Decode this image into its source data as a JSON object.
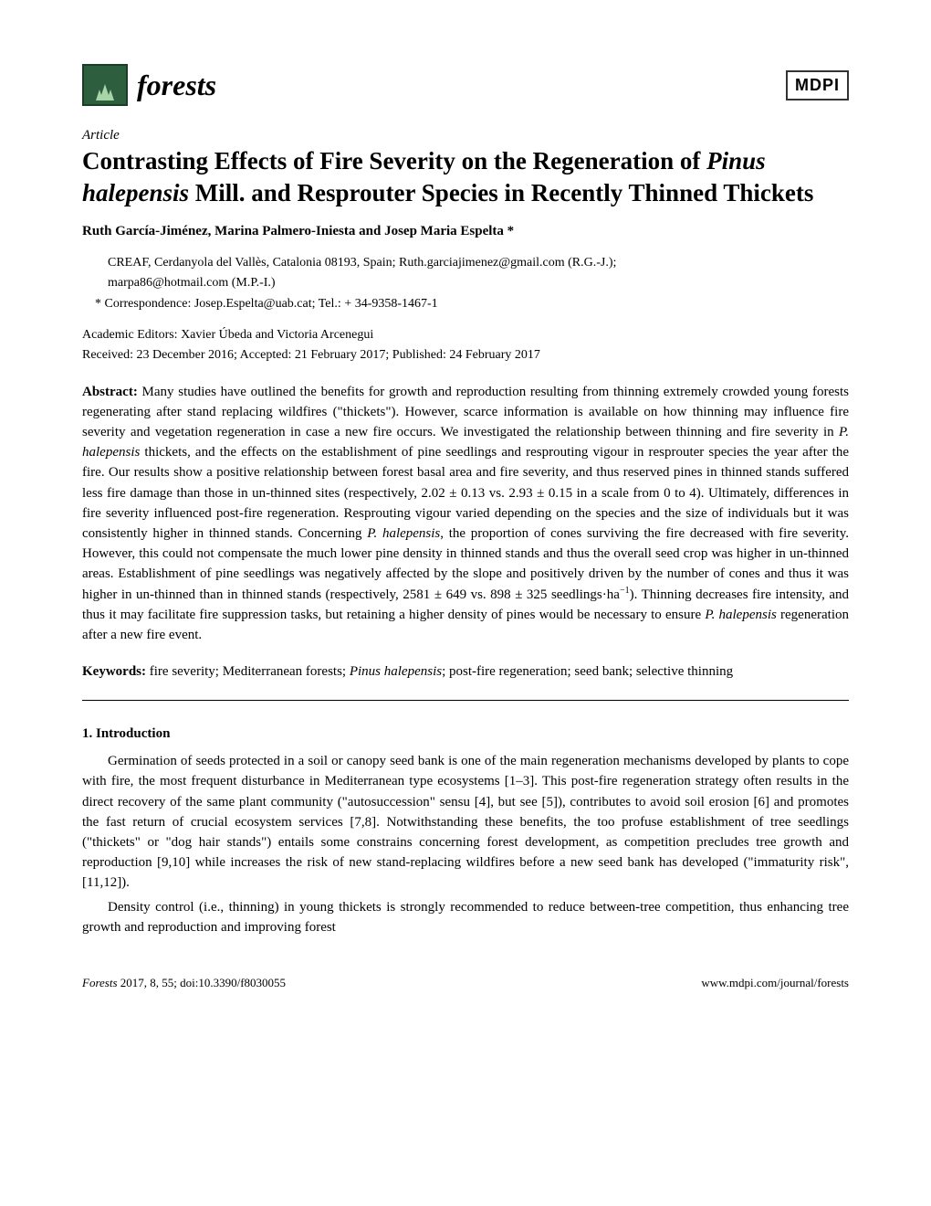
{
  "journal": {
    "name": "forests",
    "publisher": "MDPI"
  },
  "article": {
    "type": "Article",
    "title_pre": "Contrasting Effects of Fire Severity on the Regeneration of ",
    "title_species": "Pinus halepensis",
    "title_post": " Mill. and Resprouter Species in Recently Thinned Thickets",
    "authors": "Ruth García-Jiménez, Marina Palmero-Iniesta and Josep Maria Espelta *",
    "affiliation_line1": "CREAF, Cerdanyola del Vallès, Catalonia 08193, Spain; Ruth.garciajimenez@gmail.com (R.G.-J.);",
    "affiliation_line2": "marpa86@hotmail.com (M.P.-I.)",
    "correspondence": "*  Correspondence: Josep.Espelta@uab.cat; Tel.: + 34-9358-1467-1",
    "editors": "Academic Editors: Xavier Úbeda and Victoria Arcenegui",
    "dates": "Received: 23 December 2016; Accepted: 21 February 2017; Published: 24 February 2017",
    "abstract_label": "Abstract:",
    "abstract_p1a": " Many studies have outlined the benefits for growth and reproduction resulting from thinning extremely crowded young forests regenerating after stand replacing wildfires (\"thickets\"). However, scarce information is available on how thinning may influence fire severity and vegetation regeneration in case a new fire occurs. We investigated the relationship between thinning and fire severity in ",
    "abstract_sp1": "P. halepensis",
    "abstract_p1b": " thickets, and the effects on the establishment of pine seedlings and resprouting vigour in resprouter species the year after the fire. Our results show a positive relationship between forest basal area and fire severity, and thus reserved pines in thinned stands suffered less fire damage than those in un-thinned sites (respectively, 2.02 ± 0.13 vs. 2.93 ± 0.15 in a scale from 0 to 4). Ultimately, differences in fire severity influenced post-fire regeneration. Resprouting vigour varied depending on the species and the size of individuals but it was consistently higher in thinned stands. Concerning ",
    "abstract_sp2": "P. halepensis",
    "abstract_p1c": ", the proportion of cones surviving the fire decreased with fire severity. However, this could not compensate the much lower pine density in thinned stands and thus the overall seed crop was higher in un-thinned areas. Establishment of pine seedlings was negatively affected by the slope and positively driven by the number of cones and thus it was higher in un-thinned than in thinned stands (respectively, 2581 ± 649 vs. 898 ± 325 seedlings·ha",
    "abstract_sup": "−1",
    "abstract_p1d": "). Thinning decreases fire intensity, and thus it may facilitate fire suppression tasks, but retaining a higher density of pines would be necessary to ensure ",
    "abstract_sp3": "P. halepensis",
    "abstract_p1e": " regeneration after a new fire event.",
    "keywords_label": "Keywords:",
    "keywords_pre": " fire severity; Mediterranean forests; ",
    "keywords_species": "Pinus halepensis",
    "keywords_post": "; post-fire regeneration; seed bank; selective thinning",
    "section1": "1. Introduction",
    "intro_p1": "Germination of seeds protected in a soil or canopy seed bank is one of the main regeneration mechanisms developed by plants to cope with fire, the most frequent disturbance in Mediterranean type ecosystems [1–3]. This post-fire regeneration strategy often results in the direct recovery of the same plant community (\"autosuccession\" sensu [4], but see [5]), contributes to avoid soil erosion [6] and promotes the fast return of crucial ecosystem services [7,8]. Notwithstanding these benefits, the too profuse establishment of tree seedlings (\"thickets\" or \"dog hair stands\") entails some constrains concerning forest development, as competition precludes tree growth and reproduction [9,10] while increases the risk of new stand-replacing wildfires before a new seed bank has developed (\"immaturity risk\", [11,12]).",
    "intro_p2": "Density control (i.e., thinning) in young thickets is strongly recommended to reduce between-tree competition, thus enhancing tree growth and reproduction and improving forest"
  },
  "footer": {
    "citation_journal": "Forests",
    "citation_rest": " 2017, 8, 55; doi:10.3390/f8030055",
    "url": "www.mdpi.com/journal/forests"
  },
  "colors": {
    "background": "#ffffff",
    "text": "#000000",
    "logo_bg": "#2d5f3f",
    "logo_border": "#1a3d28",
    "tree_fill": "#a8d4a8"
  }
}
